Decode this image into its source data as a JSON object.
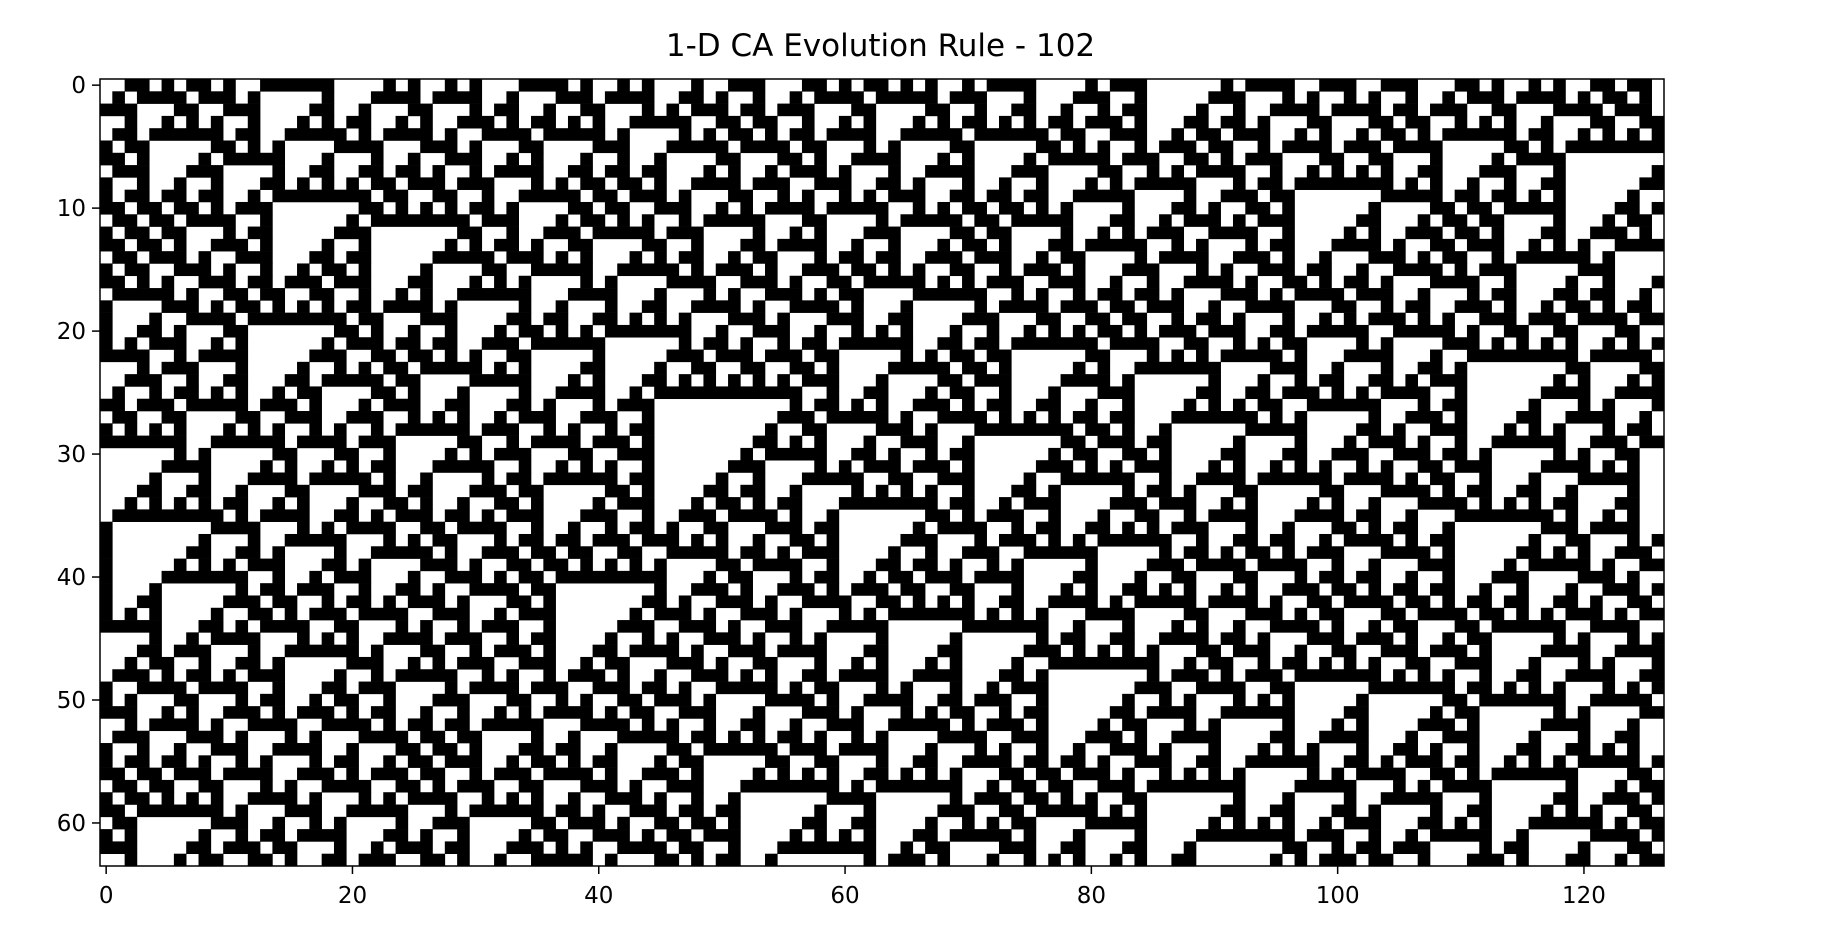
{
  "chart_data": {
    "type": "heatmap",
    "title": "1-D CA Evolution Rule - 102",
    "xlabel": "",
    "ylabel": "",
    "rule": 102,
    "width": 127,
    "steps": 64,
    "xlim": [
      -0.5,
      126.5
    ],
    "ylim": [
      63.5,
      -0.5
    ],
    "xticks": [
      0,
      20,
      40,
      60,
      80,
      100,
      120
    ],
    "yticks": [
      0,
      10,
      20,
      30,
      40,
      50,
      60
    ],
    "colormap": {
      "1": "#000000",
      "0": "#ffffff"
    },
    "grid": false,
    "initial_row_hex": "35a7e14a3d289c6b52f0b8179ce34a6d"
  }
}
